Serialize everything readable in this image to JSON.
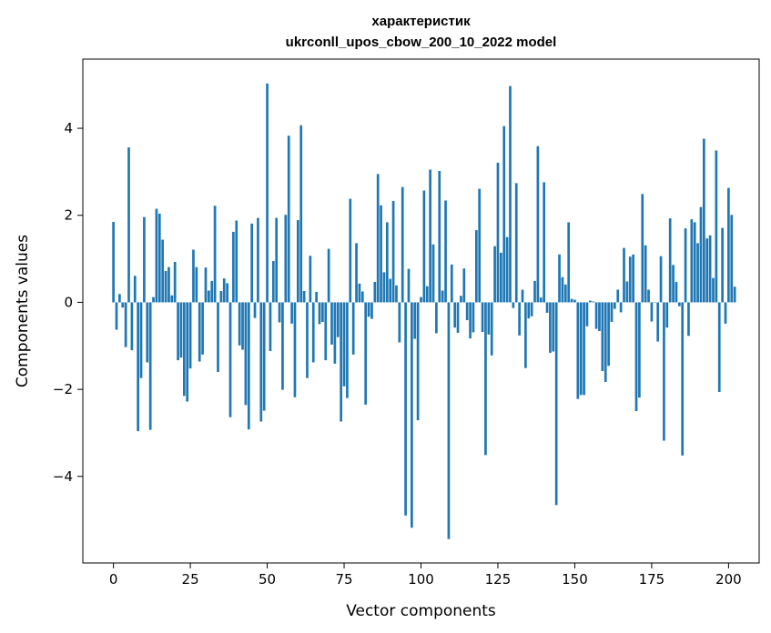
{
  "chart_data": {
    "type": "bar",
    "title_line1": "характеристик",
    "title_line2": "ukrconll_upos_cbow_200_10_2022 model",
    "xlabel": "Vector components",
    "ylabel": "Components values",
    "xlim": [
      -9.95,
      209.95
    ],
    "ylim": [
      -5.99,
      5.59
    ],
    "x_ticks": [
      {
        "value": 0,
        "label": "0"
      },
      {
        "value": 25,
        "label": "25"
      },
      {
        "value": 50,
        "label": "50"
      },
      {
        "value": 75,
        "label": "75"
      },
      {
        "value": 100,
        "label": "100"
      },
      {
        "value": 125,
        "label": "125"
      },
      {
        "value": 150,
        "label": "150"
      },
      {
        "value": 175,
        "label": "175"
      },
      {
        "value": 200,
        "label": "200"
      }
    ],
    "y_ticks": [
      {
        "value": -4,
        "label": "−4"
      },
      {
        "value": -2,
        "label": "−2"
      },
      {
        "value": 0,
        "label": "0"
      },
      {
        "value": 2,
        "label": "2"
      },
      {
        "value": 4,
        "label": "4"
      }
    ],
    "bar_color": "#1f77b4",
    "grid": false,
    "values": [
      1.85,
      -0.63,
      0.19,
      -0.12,
      -1.03,
      3.56,
      -1.1,
      0.61,
      -2.96,
      -1.74,
      1.96,
      -1.38,
      -2.93,
      0.12,
      2.15,
      2.04,
      1.44,
      0.72,
      0.81,
      0.16,
      0.93,
      -1.33,
      -1.27,
      -2.15,
      -2.28,
      -1.52,
      1.21,
      0.81,
      -1.36,
      -1.2,
      0.8,
      0.27,
      0.49,
      2.22,
      -1.6,
      0.26,
      0.55,
      0.44,
      -2.64,
      1.62,
      1.88,
      -0.99,
      -1.09,
      -2.36,
      -2.92,
      1.81,
      -0.36,
      1.94,
      -2.74,
      -2.49,
      5.03,
      -1.12,
      0.95,
      1.94,
      -0.46,
      -2.01,
      2.01,
      3.83,
      -0.49,
      -2.18,
      1.89,
      4.07,
      0.26,
      -1.74,
      1.07,
      -1.38,
      0.24,
      -0.5,
      -0.45,
      -1.33,
      1.23,
      -0.97,
      -1.41,
      -0.8,
      -2.74,
      -1.93,
      -2.2,
      2.38,
      -1.2,
      1.36,
      0.43,
      0.25,
      -2.35,
      -0.33,
      -0.38,
      0.47,
      2.95,
      2.23,
      0.69,
      1.84,
      0.54,
      2.33,
      0.39,
      -0.92,
      2.65,
      -4.9,
      0.77,
      -5.18,
      -0.84,
      -2.71,
      0.12,
      2.57,
      0.37,
      3.05,
      1.33,
      -0.71,
      3.02,
      0.27,
      2.34,
      -5.44,
      0.87,
      -0.58,
      -0.7,
      0.15,
      0.78,
      -0.41,
      -0.83,
      -0.69,
      1.66,
      2.61,
      -0.68,
      -3.51,
      -0.74,
      -1.22,
      1.29,
      3.21,
      1.14,
      4.05,
      1.5,
      4.97,
      -0.13,
      2.74,
      -0.76,
      0.29,
      -1.51,
      -0.37,
      -0.32,
      0.49,
      3.59,
      0.11,
      2.76,
      -0.24,
      -1.16,
      -1.13,
      -4.66,
      1.1,
      0.58,
      0.41,
      1.84,
      0.08,
      0.06,
      -2.22,
      -2.13,
      -2.13,
      -0.55,
      0.04,
      0.02,
      -0.61,
      -0.66,
      -1.58,
      -1.83,
      -1.46,
      -0.45,
      -0.15,
      0.29,
      -0.23,
      1.25,
      0.48,
      1.05,
      1.1,
      -2.5,
      -2.19,
      2.49,
      1.31,
      0.29,
      -0.44,
      -0.01,
      -0.9,
      1.06,
      -3.18,
      -0.58,
      1.93,
      0.86,
      0.47,
      -0.09,
      -3.52,
      1.7,
      -0.77,
      1.91,
      1.84,
      1.36,
      2.19,
      3.76,
      1.47,
      1.54,
      0.56,
      3.49,
      -2.06,
      1.71,
      -0.49,
      2.63,
      2.01,
      0.36
    ]
  }
}
